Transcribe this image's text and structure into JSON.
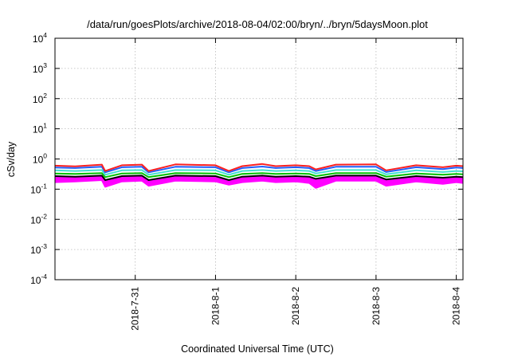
{
  "chart_data": {
    "type": "area",
    "title": "/data/run/goesPlots/archive/2018-08-04/02:00/bryn/../bryn/5daysMoon.plot",
    "xlabel": "Coordinated Universal Time (UTC)",
    "ylabel": "cSv/day",
    "y_scale": "log",
    "ylim": [
      0.0001,
      10000
    ],
    "xlim": [
      "2018-07-30 00:00",
      "2018-08-04 02:00"
    ],
    "grid": true,
    "y_ticks": [
      {
        "base": "10",
        "exp": "-4",
        "value": 0.0001
      },
      {
        "base": "10",
        "exp": "-3",
        "value": 0.001
      },
      {
        "base": "10",
        "exp": "-2",
        "value": 0.01
      },
      {
        "base": "10",
        "exp": "-1",
        "value": 0.1
      },
      {
        "base": "10",
        "exp": "0",
        "value": 1
      },
      {
        "base": "10",
        "exp": "1",
        "value": 10
      },
      {
        "base": "10",
        "exp": "2",
        "value": 100
      },
      {
        "base": "10",
        "exp": "3",
        "value": 1000
      },
      {
        "base": "10",
        "exp": "4",
        "value": 10000
      }
    ],
    "x_ticks": [
      {
        "label": "2018-7-31",
        "date": "2018-07-31 00:00"
      },
      {
        "label": "2018-8-1",
        "date": "2018-08-01 00:00"
      },
      {
        "label": "2018-8-2",
        "date": "2018-08-02 00:00"
      },
      {
        "label": "2018-8-3",
        "date": "2018-08-03 00:00"
      },
      {
        "label": "2018-8-4",
        "date": "2018-08-04 00:00"
      }
    ],
    "series": [
      {
        "color": "#ff00ff",
        "style": "filled-area",
        "x": [
          "2018-07-30 00:00",
          "2018-07-30 06:00",
          "2018-07-30 14:00",
          "2018-07-30 15:00",
          "2018-07-30 20:00",
          "2018-07-31 02:00",
          "2018-07-31 04:00",
          "2018-07-31 12:00",
          "2018-08-01 00:00",
          "2018-08-01 04:00",
          "2018-08-01 08:00",
          "2018-08-01 14:00",
          "2018-08-01 18:00",
          "2018-08-02 00:00",
          "2018-08-02 04:00",
          "2018-08-02 06:00",
          "2018-08-02 12:00",
          "2018-08-03 00:00",
          "2018-08-03 03:00",
          "2018-08-03 12:00",
          "2018-08-03 20:00",
          "2018-08-04 00:00",
          "2018-08-04 02:00"
        ],
        "y": [
          0.17,
          0.18,
          0.2,
          0.12,
          0.18,
          0.19,
          0.13,
          0.19,
          0.18,
          0.14,
          0.17,
          0.19,
          0.17,
          0.18,
          0.16,
          0.11,
          0.19,
          0.19,
          0.13,
          0.18,
          0.15,
          0.17,
          0.16
        ]
      },
      {
        "color": "#000000",
        "x": [
          "2018-07-30 00:00",
          "2018-07-30 06:00",
          "2018-07-30 14:00",
          "2018-07-30 15:00",
          "2018-07-30 20:00",
          "2018-07-31 02:00",
          "2018-07-31 04:00",
          "2018-07-31 12:00",
          "2018-08-01 00:00",
          "2018-08-01 04:00",
          "2018-08-01 08:00",
          "2018-08-01 14:00",
          "2018-08-01 18:00",
          "2018-08-02 00:00",
          "2018-08-02 04:00",
          "2018-08-02 06:00",
          "2018-08-02 12:00",
          "2018-08-03 00:00",
          "2018-08-03 03:00",
          "2018-08-03 12:00",
          "2018-08-03 20:00",
          "2018-08-04 00:00",
          "2018-08-04 02:00"
        ],
        "y": [
          0.27,
          0.26,
          0.28,
          0.2,
          0.27,
          0.28,
          0.2,
          0.28,
          0.27,
          0.2,
          0.26,
          0.28,
          0.26,
          0.27,
          0.26,
          0.22,
          0.28,
          0.28,
          0.21,
          0.27,
          0.24,
          0.26,
          0.25
        ]
      },
      {
        "color": "#00c000",
        "x": [
          "2018-07-30 00:00",
          "2018-07-30 06:00",
          "2018-07-30 14:00",
          "2018-07-30 15:00",
          "2018-07-30 20:00",
          "2018-07-31 02:00",
          "2018-07-31 04:00",
          "2018-07-31 12:00",
          "2018-08-01 00:00",
          "2018-08-01 04:00",
          "2018-08-01 08:00",
          "2018-08-01 14:00",
          "2018-08-01 18:00",
          "2018-08-02 00:00",
          "2018-08-02 04:00",
          "2018-08-02 06:00",
          "2018-08-02 12:00",
          "2018-08-03 00:00",
          "2018-08-03 03:00",
          "2018-08-03 12:00",
          "2018-08-03 20:00",
          "2018-08-04 00:00",
          "2018-08-04 02:00"
        ],
        "y": [
          0.33,
          0.32,
          0.34,
          0.25,
          0.33,
          0.34,
          0.25,
          0.34,
          0.33,
          0.25,
          0.32,
          0.34,
          0.32,
          0.33,
          0.32,
          0.27,
          0.34,
          0.34,
          0.26,
          0.33,
          0.3,
          0.32,
          0.31
        ]
      },
      {
        "color": "#40e0d0",
        "x": [
          "2018-07-30 00:00",
          "2018-07-30 06:00",
          "2018-07-30 14:00",
          "2018-07-30 15:00",
          "2018-07-30 20:00",
          "2018-07-31 02:00",
          "2018-07-31 04:00",
          "2018-07-31 12:00",
          "2018-08-01 00:00",
          "2018-08-01 04:00",
          "2018-08-01 08:00",
          "2018-08-01 14:00",
          "2018-08-01 18:00",
          "2018-08-02 00:00",
          "2018-08-02 04:00",
          "2018-08-02 06:00",
          "2018-08-02 12:00",
          "2018-08-03 00:00",
          "2018-08-03 03:00",
          "2018-08-03 12:00",
          "2018-08-03 20:00",
          "2018-08-04 00:00",
          "2018-08-04 02:00"
        ],
        "y": [
          0.42,
          0.4,
          0.43,
          0.3,
          0.42,
          0.43,
          0.3,
          0.43,
          0.42,
          0.3,
          0.4,
          0.43,
          0.4,
          0.42,
          0.4,
          0.33,
          0.43,
          0.43,
          0.31,
          0.42,
          0.37,
          0.4,
          0.39
        ]
      },
      {
        "color": "#2060ff",
        "x": [
          "2018-07-30 00:00",
          "2018-07-30 06:00",
          "2018-07-30 14:00",
          "2018-07-30 15:00",
          "2018-07-30 20:00",
          "2018-07-31 02:00",
          "2018-07-31 04:00",
          "2018-07-31 12:00",
          "2018-08-01 00:00",
          "2018-08-01 04:00",
          "2018-08-01 08:00",
          "2018-08-01 14:00",
          "2018-08-01 18:00",
          "2018-08-02 00:00",
          "2018-08-02 04:00",
          "2018-08-02 06:00",
          "2018-08-02 12:00",
          "2018-08-03 00:00",
          "2018-08-03 03:00",
          "2018-08-03 12:00",
          "2018-08-03 20:00",
          "2018-08-04 00:00",
          "2018-08-04 02:00"
        ],
        "y": [
          0.52,
          0.5,
          0.55,
          0.36,
          0.53,
          0.55,
          0.36,
          0.55,
          0.53,
          0.36,
          0.5,
          0.56,
          0.5,
          0.53,
          0.5,
          0.4,
          0.55,
          0.55,
          0.37,
          0.53,
          0.46,
          0.52,
          0.5
        ]
      },
      {
        "color": "#ff2020",
        "x": [
          "2018-07-30 00:00",
          "2018-07-30 06:00",
          "2018-07-30 14:00",
          "2018-07-30 15:00",
          "2018-07-30 20:00",
          "2018-07-31 02:00",
          "2018-07-31 04:00",
          "2018-07-31 12:00",
          "2018-08-01 00:00",
          "2018-08-01 04:00",
          "2018-08-01 08:00",
          "2018-08-01 14:00",
          "2018-08-01 18:00",
          "2018-08-02 00:00",
          "2018-08-02 04:00",
          "2018-08-02 06:00",
          "2018-08-02 12:00",
          "2018-08-03 00:00",
          "2018-08-03 03:00",
          "2018-08-03 12:00",
          "2018-08-03 20:00",
          "2018-08-04 00:00",
          "2018-08-04 02:00"
        ],
        "y": [
          0.6,
          0.57,
          0.65,
          0.4,
          0.62,
          0.65,
          0.4,
          0.66,
          0.62,
          0.4,
          0.58,
          0.68,
          0.58,
          0.62,
          0.58,
          0.45,
          0.65,
          0.66,
          0.42,
          0.62,
          0.53,
          0.6,
          0.58
        ]
      }
    ]
  }
}
